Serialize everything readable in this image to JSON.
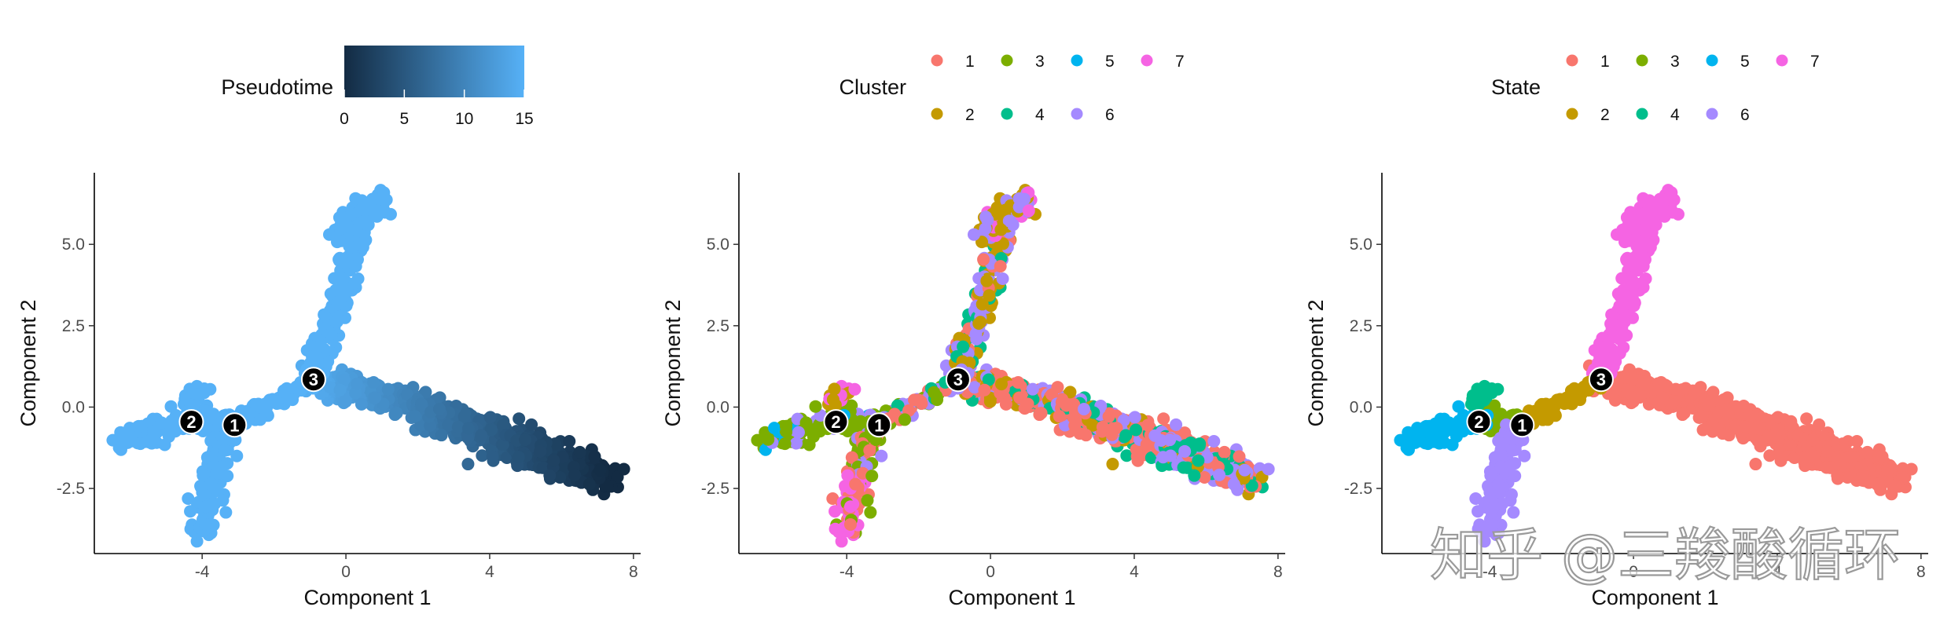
{
  "watermark": "知乎 @三羧酸循环",
  "chart_data": [
    {
      "type": "scatter",
      "color_by": "Pseudotime",
      "xlabel": "Component 1",
      "ylabel": "Component 2",
      "xlim": [
        -7,
        8.2
      ],
      "ylim": [
        -4.5,
        7.2
      ],
      "x_ticks": [
        -4,
        0,
        4,
        8
      ],
      "x_tick_labels": [
        "-4",
        "0",
        "4",
        "8"
      ],
      "y_ticks": [
        -2.5,
        0,
        2.5,
        5
      ],
      "y_tick_labels": [
        "-2.5",
        "0.0",
        "2.5",
        "5.0"
      ],
      "grid": false,
      "legend": {
        "position": "top",
        "title": "Pseudotime",
        "kind": "colorbar",
        "range": [
          0,
          15
        ],
        "ticks": [
          0,
          5,
          10,
          15
        ],
        "tick_labels": [
          "0",
          "5",
          "10",
          "15"
        ],
        "colors": [
          "#132B43",
          "#56B1F7"
        ]
      },
      "branch_points": [
        {
          "label": "1",
          "x": -3.1,
          "y": -0.55
        },
        {
          "label": "2",
          "x": -4.3,
          "y": -0.45
        },
        {
          "label": "3",
          "x": -0.9,
          "y": 0.85
        }
      ],
      "color_mode": "pseudotime"
    },
    {
      "type": "scatter",
      "color_by": "Cluster",
      "xlabel": "Component 1",
      "ylabel": "Component 2",
      "xlim": [
        -7,
        8.2
      ],
      "ylim": [
        -4.5,
        7.2
      ],
      "x_ticks": [
        -4,
        0,
        4,
        8
      ],
      "x_tick_labels": [
        "-4",
        "0",
        "4",
        "8"
      ],
      "y_ticks": [
        -2.5,
        0,
        2.5,
        5
      ],
      "y_tick_labels": [
        "-2.5",
        "0.0",
        "2.5",
        "5.0"
      ],
      "grid": false,
      "legend": {
        "position": "top",
        "title": "Cluster",
        "kind": "discrete",
        "entries": [
          {
            "label": "1",
            "color": "#F8766D"
          },
          {
            "label": "3",
            "color": "#7CAE00"
          },
          {
            "label": "5",
            "color": "#00B4EF"
          },
          {
            "label": "7",
            "color": "#F564E3"
          },
          {
            "label": "2",
            "color": "#C49A00"
          },
          {
            "label": "4",
            "color": "#00BE8C"
          },
          {
            "label": "6",
            "color": "#A58AFF"
          }
        ]
      },
      "branch_points": [
        {
          "label": "1",
          "x": -3.1,
          "y": -0.55
        },
        {
          "label": "2",
          "x": -4.3,
          "y": -0.45
        },
        {
          "label": "3",
          "x": -0.9,
          "y": 0.85
        }
      ],
      "color_mode": "cluster"
    },
    {
      "type": "scatter",
      "color_by": "State",
      "xlabel": "Component 1",
      "ylabel": "Component 2",
      "xlim": [
        -7,
        8.2
      ],
      "ylim": [
        -4.5,
        7.2
      ],
      "x_ticks": [
        -4,
        0,
        4,
        8
      ],
      "x_tick_labels": [
        "-4",
        "0",
        "4",
        "8"
      ],
      "y_ticks": [
        -2.5,
        0,
        2.5,
        5
      ],
      "y_tick_labels": [
        "-2.5",
        "0.0",
        "2.5",
        "5.0"
      ],
      "grid": false,
      "legend": {
        "position": "top",
        "title": "State",
        "kind": "discrete",
        "entries": [
          {
            "label": "1",
            "color": "#F8766D"
          },
          {
            "label": "3",
            "color": "#7CAE00"
          },
          {
            "label": "5",
            "color": "#00B4EF"
          },
          {
            "label": "7",
            "color": "#F564E3"
          },
          {
            "label": "2",
            "color": "#C49A00"
          },
          {
            "label": "4",
            "color": "#00BE8C"
          },
          {
            "label": "6",
            "color": "#A58AFF"
          }
        ]
      },
      "branch_points": [
        {
          "label": "1",
          "x": -3.1,
          "y": -0.55
        },
        {
          "label": "2",
          "x": -4.3,
          "y": -0.45
        },
        {
          "label": "3",
          "x": -0.9,
          "y": 0.85
        }
      ],
      "color_mode": "state"
    }
  ]
}
